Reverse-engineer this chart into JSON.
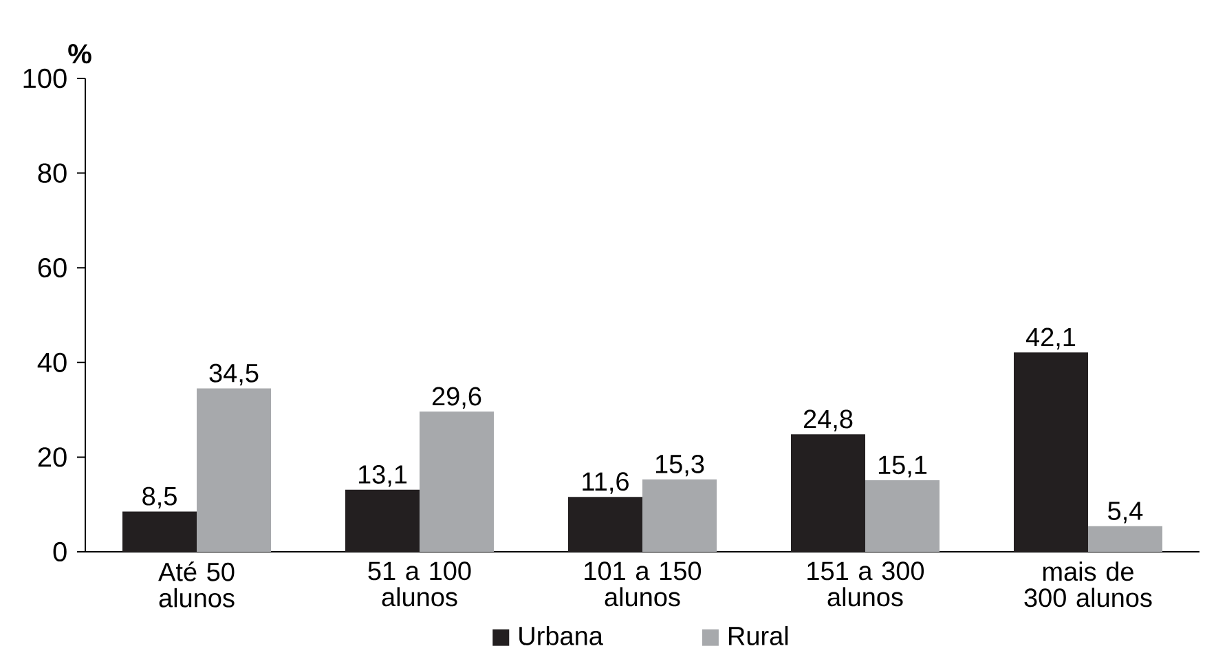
{
  "chart_data": {
    "type": "bar",
    "ylabel": "%",
    "categories": [
      "Até 50 alunos",
      "51 a 100 alunos",
      "101 a 150 alunos",
      "151 a 300 alunos",
      "mais de 300 alunos"
    ],
    "series": [
      {
        "name": "Urbana",
        "color": "#231f20",
        "values": [
          8.5,
          13.1,
          11.6,
          24.8,
          42.1
        ],
        "value_labels": [
          "8,5",
          "13,1",
          "11,6",
          "24,8",
          "42,1"
        ]
      },
      {
        "name": "Rural",
        "color": "#a7a9ac",
        "values": [
          34.5,
          29.6,
          15.3,
          15.1,
          5.4
        ],
        "value_labels": [
          "34,5",
          "29,6",
          "15,3",
          "15,1",
          "5,4"
        ]
      }
    ],
    "ylim": [
      0,
      100
    ],
    "yticks": [
      0,
      20,
      40,
      60,
      80,
      100
    ],
    "grid": false,
    "legend": "bottom"
  }
}
